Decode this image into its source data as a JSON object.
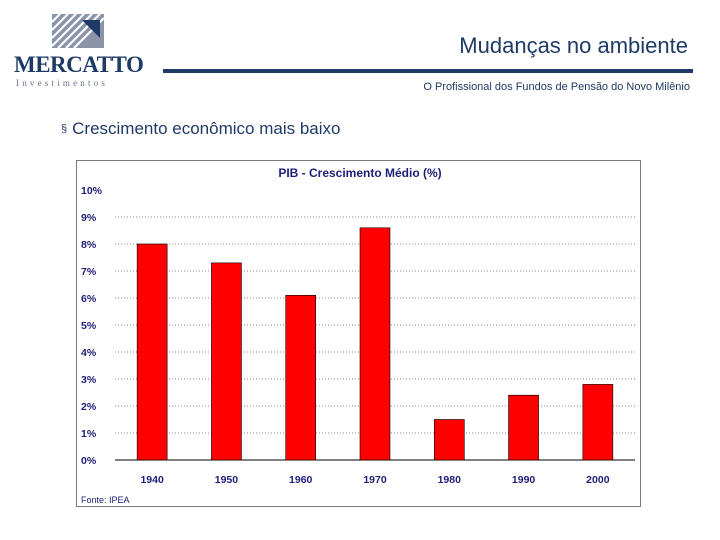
{
  "brand": {
    "name": "MERCATTO",
    "tagline": "Investimentos",
    "primary_color": "#1f3a66",
    "accent_color": "#8a93a8"
  },
  "header": {
    "title": "Mudanças no ambiente",
    "subtitle": "O Profissional dos Fundos de Pensão do Novo Milênio"
  },
  "content": {
    "bullet_marker": "§",
    "bullet_text": "Crescimento econômico mais baixo"
  },
  "chart_data": {
    "type": "bar",
    "title": "PIB - Crescimento Médio (%)",
    "categories": [
      "1940",
      "1950",
      "1960",
      "1970",
      "1980",
      "1990",
      "2000"
    ],
    "values": [
      8.0,
      7.3,
      6.1,
      8.6,
      1.5,
      2.4,
      2.8
    ],
    "ylim": [
      0,
      10
    ],
    "yticks": [
      "0%",
      "1%",
      "2%",
      "3%",
      "4%",
      "5%",
      "6%",
      "7%",
      "8%",
      "9%",
      "10%"
    ],
    "xlabel": "",
    "ylabel": "",
    "grid": true,
    "bar_color": "#ff0000",
    "source": "Fonte: IPEA"
  }
}
